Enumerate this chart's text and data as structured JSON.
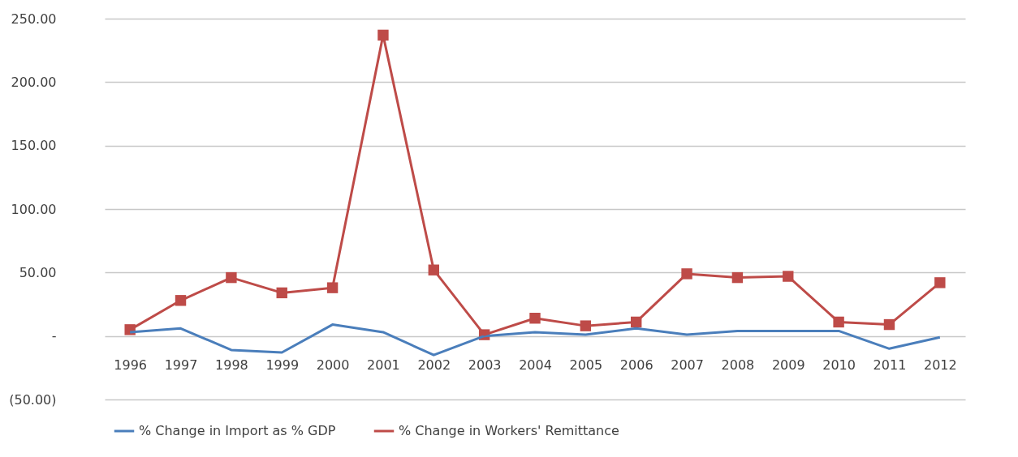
{
  "chart_data": {
    "type": "line",
    "categories": [
      "1996",
      "1997",
      "1998",
      "1999",
      "2000",
      "2001",
      "2002",
      "2003",
      "2004",
      "2005",
      "2006",
      "2007",
      "2008",
      "2009",
      "2010",
      "2011",
      "2012"
    ],
    "series": [
      {
        "name": "% Change in Import as % GDP",
        "color": "#4a7ebb",
        "marker": "none",
        "values": [
          3,
          6,
          -11,
          -13,
          9,
          3,
          -15,
          0,
          3,
          1,
          6,
          1,
          4,
          4,
          4,
          -10,
          -1
        ]
      },
      {
        "name": "% Change in Workers' Remittance",
        "color": "#be4b48",
        "marker": "square",
        "values": [
          5,
          28,
          46,
          34,
          38,
          237,
          52,
          1,
          14,
          8,
          11,
          49,
          46,
          47,
          11,
          9,
          42
        ]
      }
    ],
    "ylim": [
      -50,
      250
    ],
    "yticks": [
      {
        "value": -50,
        "label": "(50.00)"
      },
      {
        "value": 0,
        "label": "-"
      },
      {
        "value": 50,
        "label": "50.00"
      },
      {
        "value": 100,
        "label": "100.00"
      },
      {
        "value": 150,
        "label": "150.00"
      },
      {
        "value": 200,
        "label": "200.00"
      },
      {
        "value": 250,
        "label": "250.00"
      }
    ],
    "grid": "y",
    "legend": "bottom",
    "line_style": "solid"
  }
}
